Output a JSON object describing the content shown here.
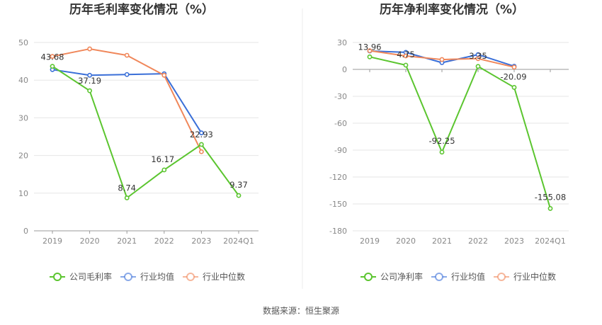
{
  "source_text": "数据来源：恒生聚源",
  "chart_data": [
    {
      "type": "line",
      "title": "历年毛利率变化情况（%）",
      "categories": [
        "2019",
        "2020",
        "2021",
        "2022",
        "2023",
        "2024Q1"
      ],
      "ylim": [
        0,
        50
      ],
      "yticks": [
        "0",
        "10",
        "20",
        "30",
        "40",
        "50"
      ],
      "grid": true,
      "legend_position": "bottom",
      "series": [
        {
          "name": "公司毛利率",
          "color": "#5bc52f",
          "values": [
            43.68,
            37.19,
            8.74,
            16.17,
            22.93,
            9.37
          ],
          "labels": [
            "43.68",
            "37.19",
            "8.74",
            "16.17",
            "22.93",
            "9.37"
          ]
        },
        {
          "name": "行业均值",
          "color": "#3a6fd8",
          "values": [
            42.8,
            41.3,
            41.5,
            41.7,
            26.0,
            null
          ]
        },
        {
          "name": "行业中位数",
          "color": "#f0875a",
          "values": [
            46.3,
            48.3,
            46.6,
            41.3,
            21.0,
            null
          ]
        }
      ]
    },
    {
      "type": "line",
      "title": "历年净利率变化情况（%）",
      "categories": [
        "2019",
        "2020",
        "2021",
        "2022",
        "2023",
        "2024Q1"
      ],
      "ylim": [
        -180,
        30
      ],
      "yticks": [
        "30",
        "0",
        "-30",
        "-60",
        "-90",
        "-120",
        "-150",
        "-180"
      ],
      "grid": true,
      "legend_position": "bottom",
      "series": [
        {
          "name": "公司净利率",
          "color": "#5bc52f",
          "values": [
            13.96,
            4.75,
            -92.25,
            3.35,
            -20.09,
            -155.08
          ],
          "labels": [
            "13.96",
            "4.75",
            "-92.25",
            "3.35",
            "-20.09",
            "-155.08"
          ]
        },
        {
          "name": "行业均值",
          "color": "#3a6fd8",
          "values": [
            20.5,
            19.0,
            7.5,
            16.5,
            3.5,
            null
          ]
        },
        {
          "name": "行业中位数",
          "color": "#f0875a",
          "values": [
            20.8,
            15.0,
            11.0,
            12.0,
            2.5,
            null
          ]
        }
      ]
    }
  ]
}
